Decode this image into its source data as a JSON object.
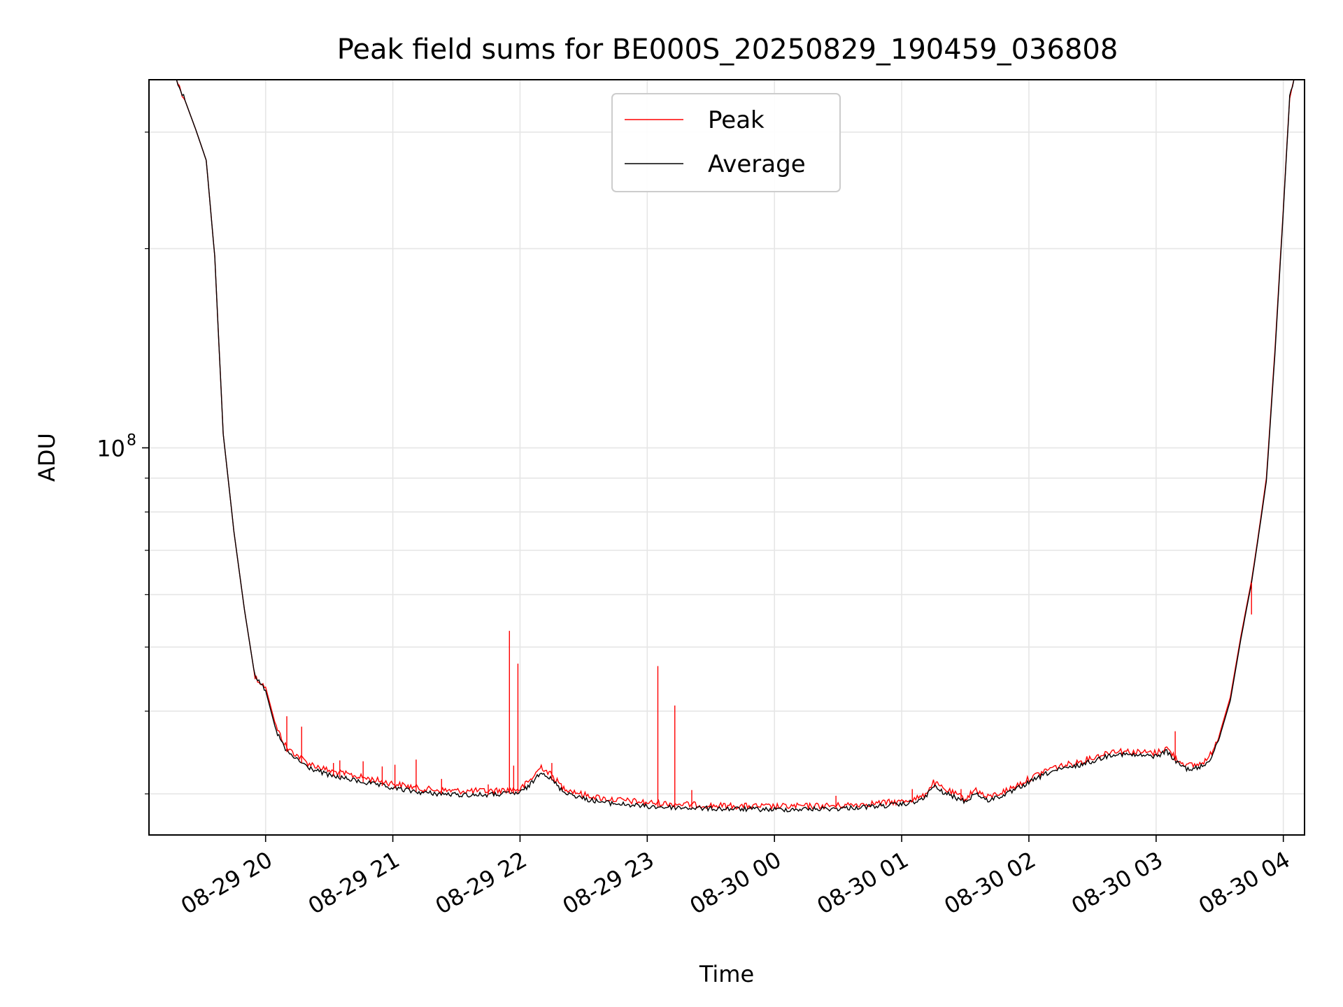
{
  "chart_data": {
    "type": "line",
    "title": "Peak field sums for BE000S_20250829_190459_036808",
    "xlabel": "Time",
    "ylabel": "ADU",
    "y_scale": "log",
    "ylim": [
      26000000,
      360000000
    ],
    "xlim": [
      "2025-08-29T19:05",
      "2025-08-30T04:10"
    ],
    "grid": true,
    "legend_placement": "top-center",
    "x_tick_labels": [
      "08-29 20",
      "08-29 21",
      "08-29 22",
      "08-29 23",
      "08-30 00",
      "08-30 01",
      "08-30 02",
      "08-30 03",
      "08-30 04"
    ],
    "x_tick_values": [
      "2025-08-29T20:00",
      "2025-08-29T21:00",
      "2025-08-29T22:00",
      "2025-08-29T23:00",
      "2025-08-30T00:00",
      "2025-08-30T01:00",
      "2025-08-30T02:00",
      "2025-08-30T03:00",
      "2025-08-30T04:00"
    ],
    "y_major_ticks": [
      {
        "value": 100000000,
        "label_base": "10",
        "label_exp": "8"
      }
    ],
    "x": [
      "2025-08-29T19:10",
      "2025-08-29T19:18",
      "2025-08-29T19:22",
      "2025-08-29T19:27",
      "2025-08-29T19:32",
      "2025-08-29T19:36",
      "2025-08-29T19:40",
      "2025-08-29T19:45",
      "2025-08-29T19:50",
      "2025-08-29T19:55",
      "2025-08-29T20:00",
      "2025-08-29T20:05",
      "2025-08-29T20:10",
      "2025-08-29T20:20",
      "2025-08-29T20:30",
      "2025-08-29T20:45",
      "2025-08-29T21:00",
      "2025-08-29T21:15",
      "2025-08-29T21:30",
      "2025-08-29T21:45",
      "2025-08-29T22:00",
      "2025-08-29T22:05",
      "2025-08-29T22:10",
      "2025-08-29T22:15",
      "2025-08-29T22:20",
      "2025-08-29T22:25",
      "2025-08-29T22:30",
      "2025-08-29T22:40",
      "2025-08-29T23:00",
      "2025-08-29T23:30",
      "2025-08-30T00:00",
      "2025-08-30T00:30",
      "2025-08-30T01:00",
      "2025-08-30T01:10",
      "2025-08-30T01:15",
      "2025-08-30T01:20",
      "2025-08-30T01:30",
      "2025-08-30T01:35",
      "2025-08-30T01:40",
      "2025-08-30T01:50",
      "2025-08-30T02:00",
      "2025-08-30T02:10",
      "2025-08-30T02:20",
      "2025-08-30T02:30",
      "2025-08-30T02:40",
      "2025-08-30T02:50",
      "2025-08-30T03:00",
      "2025-08-30T03:05",
      "2025-08-30T03:10",
      "2025-08-30T03:15",
      "2025-08-30T03:20",
      "2025-08-30T03:25",
      "2025-08-30T03:30",
      "2025-08-30T03:35",
      "2025-08-30T03:40",
      "2025-08-30T03:45",
      "2025-08-30T03:48",
      "2025-08-30T03:52",
      "2025-08-30T03:56",
      "2025-08-30T04:00",
      "2025-08-30T04:03",
      "2025-08-30T04:05",
      "2025-08-30T04:10"
    ],
    "series": [
      {
        "name": "Peak",
        "color": "#ff0000",
        "values": [
          360000000,
          360000000,
          335000000,
          303000000,
          272000000,
          195000000,
          105000000,
          75000000,
          57000000,
          45000000,
          43500000,
          37800000,
          35200000,
          33400000,
          32500000,
          31800000,
          31100000,
          30500000,
          30300000,
          30300000,
          30500000,
          31500000,
          33000000,
          32000000,
          30700000,
          30300000,
          29900000,
          29500000,
          29100000,
          28800000,
          28700000,
          28800000,
          29200000,
          29700000,
          31200000,
          30500000,
          29500000,
          30500000,
          29600000,
          30400000,
          31600000,
          32800000,
          33300000,
          34000000,
          34900000,
          34700000,
          34600000,
          35200000,
          33800000,
          33100000,
          33200000,
          34000000,
          37000000,
          42000000,
          52000000,
          63000000,
          73000000,
          90000000,
          140000000,
          230000000,
          340000000,
          360000000,
          360000000
        ]
      },
      {
        "name": "Average",
        "color": "#000000",
        "values": [
          360000000,
          360000000,
          335000000,
          303000000,
          272000000,
          195000000,
          105000000,
          75000000,
          57000000,
          45000000,
          43000000,
          37300000,
          34700000,
          32900000,
          32000000,
          31300000,
          30600000,
          30100000,
          29900000,
          29900000,
          30100000,
          31000000,
          32500000,
          31500000,
          30300000,
          29900000,
          29500000,
          29100000,
          28700000,
          28500000,
          28400000,
          28500000,
          28900000,
          29400000,
          30800000,
          30100000,
          29200000,
          30100000,
          29300000,
          30000000,
          31200000,
          32400000,
          32900000,
          33600000,
          34500000,
          34300000,
          34200000,
          34800000,
          33400000,
          32700000,
          32800000,
          33600000,
          36600000,
          41500000,
          51500000,
          62500000,
          72500000,
          89000000,
          138000000,
          228000000,
          338000000,
          360000000,
          360000000
        ]
      }
    ],
    "spikes": [
      {
        "x": "2025-08-29T20:10",
        "y": 39300000
      },
      {
        "x": "2025-08-29T20:17",
        "y": 37900000
      },
      {
        "x": "2025-08-29T20:32",
        "y": 33400000
      },
      {
        "x": "2025-08-29T20:35",
        "y": 33700000
      },
      {
        "x": "2025-08-29T20:46",
        "y": 33600000
      },
      {
        "x": "2025-08-29T20:55",
        "y": 33000000
      },
      {
        "x": "2025-08-29T21:01",
        "y": 33200000
      },
      {
        "x": "2025-08-29T21:11",
        "y": 33800000
      },
      {
        "x": "2025-08-29T21:23",
        "y": 31600000
      },
      {
        "x": "2025-08-29T21:45",
        "y": 31000000
      },
      {
        "x": "2025-08-29T21:55",
        "y": 52900000
      },
      {
        "x": "2025-08-29T21:57",
        "y": 33100000
      },
      {
        "x": "2025-08-29T21:59",
        "y": 47200000
      },
      {
        "x": "2025-08-29T22:15",
        "y": 33400000
      },
      {
        "x": "2025-08-29T23:05",
        "y": 46800000
      },
      {
        "x": "2025-08-29T23:13",
        "y": 40800000
      },
      {
        "x": "2025-08-29T23:21",
        "y": 30400000
      },
      {
        "x": "2025-08-30T00:29",
        "y": 29800000
      },
      {
        "x": "2025-08-30T01:05",
        "y": 30500000
      },
      {
        "x": "2025-08-30T01:28",
        "y": 30500000
      },
      {
        "x": "2025-08-30T03:09",
        "y": 37300000
      },
      {
        "x": "2025-08-30T03:45",
        "y": 56000000
      }
    ]
  }
}
